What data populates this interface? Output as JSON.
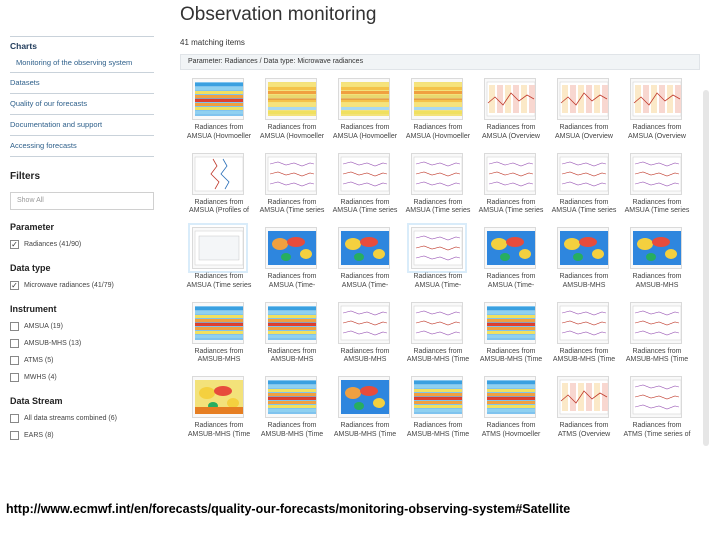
{
  "page": {
    "title": "Observation monitoring",
    "matching": "41 matching items",
    "param_bar": "Parameter: Radiances / Data type: Microwave radiances"
  },
  "nav": {
    "charts": "Charts",
    "monitoring": "Monitoring of the observing system",
    "items": [
      "Datasets",
      "Quality of our forecasts",
      "Documentation and support",
      "Accessing forecasts"
    ]
  },
  "filters": {
    "title": "Filters",
    "show_all": "Show All",
    "parameter": {
      "title": "Parameter",
      "options": [
        {
          "label": "Radiances (41/90)",
          "checked": true
        }
      ]
    },
    "data_type": {
      "title": "Data type",
      "options": [
        {
          "label": "Microwave radiances (41/79)",
          "checked": true
        }
      ]
    },
    "instrument": {
      "title": "Instrument",
      "options": [
        {
          "label": "AMSUA (19)",
          "checked": false
        },
        {
          "label": "AMSUB-MHS (13)",
          "checked": false
        },
        {
          "label": "ATMS (5)",
          "checked": false
        },
        {
          "label": "MWHS (4)",
          "checked": false
        }
      ]
    },
    "data_stream": {
      "title": "Data Stream",
      "options": [
        {
          "label": "All data streams combined (6)",
          "checked": false
        },
        {
          "label": "EARS (8)",
          "checked": false
        }
      ]
    }
  },
  "tiles": [
    {
      "l1": "Radiances from",
      "l2": "AMSUA (Hovmoeller",
      "kind": "hov"
    },
    {
      "l1": "Radiances from",
      "l2": "AMSUA (Hovmoeller",
      "kind": "hov2"
    },
    {
      "l1": "Radiances from",
      "l2": "AMSUA (Hovmoeller",
      "kind": "hov2"
    },
    {
      "l1": "Radiances from",
      "l2": "AMSUA (Hovmoeller",
      "kind": "hov2"
    },
    {
      "l1": "Radiances from",
      "l2": "AMSUA (Overview",
      "kind": "overview"
    },
    {
      "l1": "Radiances from",
      "l2": "AMSUA (Overview",
      "kind": "overview"
    },
    {
      "l1": "Radiances from",
      "l2": "AMSUA (Overview",
      "kind": "overview"
    },
    {
      "l1": "Radiances from",
      "l2": "AMSUA (Profiles of",
      "kind": "profile"
    },
    {
      "l1": "Radiances from",
      "l2": "AMSUA (Time series",
      "kind": "ts"
    },
    {
      "l1": "Radiances from",
      "l2": "AMSUA (Time series",
      "kind": "ts"
    },
    {
      "l1": "Radiances from",
      "l2": "AMSUA (Time series",
      "kind": "ts"
    },
    {
      "l1": "Radiances from",
      "l2": "AMSUA (Time series",
      "kind": "ts"
    },
    {
      "l1": "Radiances from",
      "l2": "AMSUA (Time series",
      "kind": "ts"
    },
    {
      "l1": "Radiances from",
      "l2": "AMSUA (Time series",
      "kind": "ts"
    },
    {
      "l1": "Radiances from",
      "l2": "AMSUA (Time series",
      "kind": "blank",
      "sel": true
    },
    {
      "l1": "Radiances from",
      "l2": "AMSUA (Time-",
      "kind": "map"
    },
    {
      "l1": "Radiances from",
      "l2": "AMSUA (Time-",
      "kind": "map2"
    },
    {
      "l1": "Radiances from",
      "l2": "AMSUA (Time-",
      "kind": "ts",
      "sel": true
    },
    {
      "l1": "Radiances from",
      "l2": "AMSUA (Time-",
      "kind": "map2"
    },
    {
      "l1": "Radiances from",
      "l2": "AMSUB-MHS",
      "kind": "map2"
    },
    {
      "l1": "Radiances from",
      "l2": "AMSUB-MHS",
      "kind": "map2"
    },
    {
      "l1": "Radiances from",
      "l2": "AMSUB-MHS",
      "kind": "hov"
    },
    {
      "l1": "Radiances from",
      "l2": "AMSUB-MHS",
      "kind": "hov"
    },
    {
      "l1": "Radiances from",
      "l2": "AMSUB-MHS",
      "kind": "ts"
    },
    {
      "l1": "Radiances from",
      "l2": "AMSUB-MHS (Time",
      "kind": "ts"
    },
    {
      "l1": "Radiances from",
      "l2": "AMSUB-MHS (Time",
      "kind": "hov"
    },
    {
      "l1": "Radiances from",
      "l2": "AMSUB-MHS (Time",
      "kind": "ts"
    },
    {
      "l1": "Radiances from",
      "l2": "AMSUB-MHS (Time",
      "kind": "ts"
    },
    {
      "l1": "Radiances from",
      "l2": "AMSUB-MHS (Time",
      "kind": "map3"
    },
    {
      "l1": "Radiances from",
      "l2": "AMSUB-MHS (Time",
      "kind": "hov"
    },
    {
      "l1": "Radiances from",
      "l2": "AMSUB-MHS (Time",
      "kind": "map"
    },
    {
      "l1": "Radiances from",
      "l2": "AMSUB-MHS (Time",
      "kind": "hov"
    },
    {
      "l1": "Radiances from",
      "l2": "ATMS (Hovmoeller",
      "kind": "hov"
    },
    {
      "l1": "Radiances from",
      "l2": "ATMS (Overview",
      "kind": "overview"
    },
    {
      "l1": "Radiances from",
      "l2": "ATMS (Time series of",
      "kind": "ts"
    }
  ],
  "footer": {
    "url": "http://www.ecmwf.int/en/forecasts/quality-our-forecasts/monitoring-observing-system#Satellite"
  }
}
